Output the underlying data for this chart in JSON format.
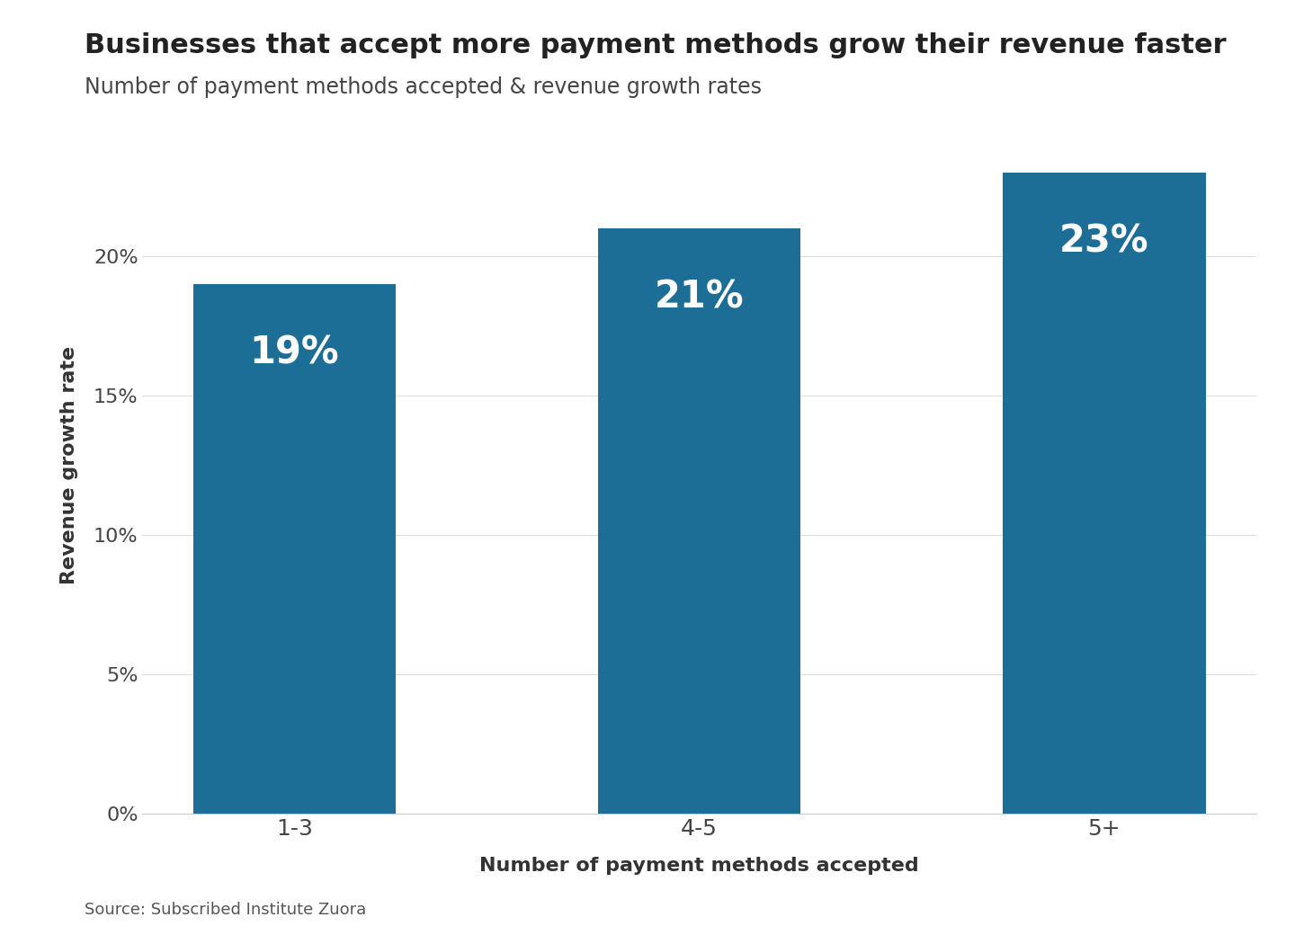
{
  "title": "Businesses that accept more payment methods grow their revenue faster",
  "subtitle": "Number of payment methods accepted & revenue growth rates",
  "categories": [
    "1-3",
    "4-5",
    "5+"
  ],
  "values": [
    19,
    21,
    23
  ],
  "bar_labels": [
    "19%",
    "21%",
    "23%"
  ],
  "bar_color": "#1c6e96",
  "ylabel": "Revenue growth rate",
  "xlabel": "Number of payment methods accepted",
  "source": "Source: Subscribed Institute Zuora",
  "ylim": [
    0,
    25
  ],
  "yticks": [
    0,
    5,
    10,
    15,
    20
  ],
  "ytick_labels": [
    "0%",
    "5%",
    "10%",
    "15%",
    "20%"
  ],
  "background_color": "#ffffff",
  "title_fontsize": 22,
  "subtitle_fontsize": 17,
  "label_fontsize": 30,
  "axis_label_fontsize": 16,
  "tick_fontsize": 16,
  "source_fontsize": 13,
  "bar_width": 0.5
}
